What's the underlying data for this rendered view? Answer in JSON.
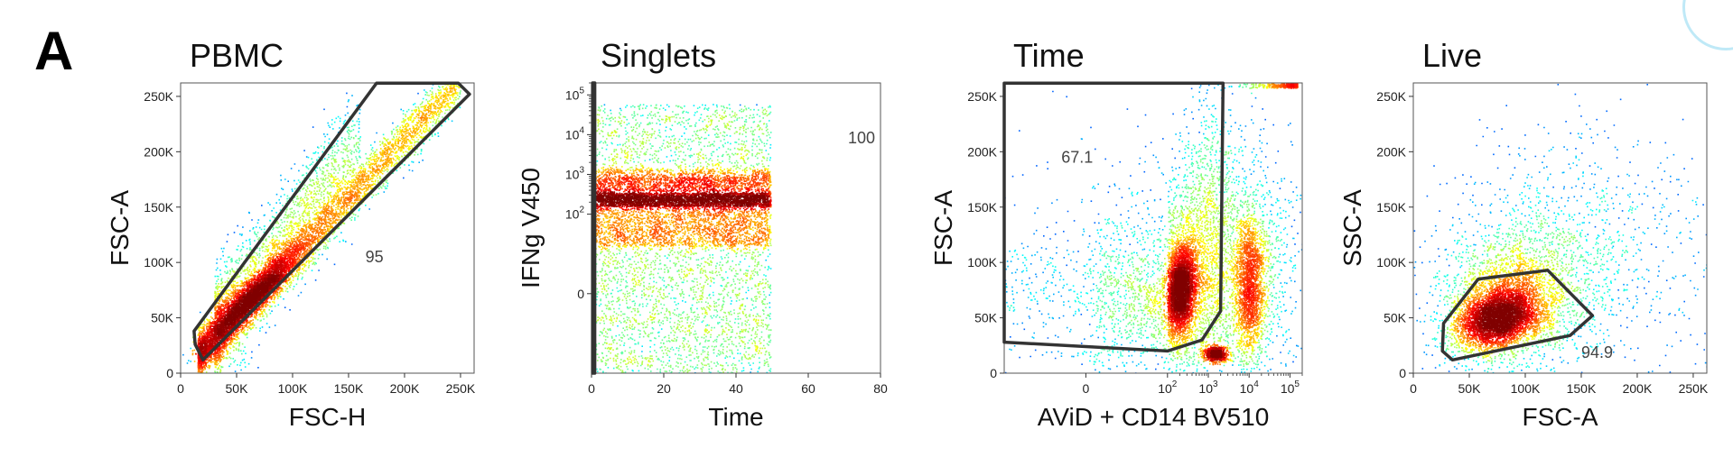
{
  "figure": {
    "panel_label": "A",
    "accent_arc_color": "#bfe9f7"
  },
  "chart_data": [
    {
      "type": "scatter",
      "title": "PBMC",
      "xlabel": "FSC-H",
      "ylabel": "FSC-A",
      "xscale": "linear",
      "yscale": "linear",
      "xlim": [
        0,
        262144
      ],
      "ylim": [
        0,
        262144
      ],
      "x_ticks": [
        {
          "value": 0,
          "label": "0"
        },
        {
          "value": 50000,
          "label": "50K"
        },
        {
          "value": 100000,
          "label": "100K"
        },
        {
          "value": 150000,
          "label": "150K"
        },
        {
          "value": 200000,
          "label": "200K"
        },
        {
          "value": 250000,
          "label": "250K"
        }
      ],
      "y_ticks": [
        {
          "value": 0,
          "label": "0"
        },
        {
          "value": 50000,
          "label": "50K"
        },
        {
          "value": 100000,
          "label": "100K"
        },
        {
          "value": 150000,
          "label": "150K"
        },
        {
          "value": 200000,
          "label": "200K"
        },
        {
          "value": 250000,
          "label": "250K"
        }
      ],
      "gate": {
        "label": "95",
        "label_at": [
          165000,
          100000
        ],
        "polygon": [
          [
            12000,
            38000
          ],
          [
            175000,
            262000
          ],
          [
            248000,
            262000
          ],
          [
            258000,
            252000
          ],
          [
            20000,
            12000
          ],
          [
            13000,
            26000
          ]
        ]
      },
      "populations": [
        {
          "type": "diag",
          "x0": 15000,
          "x1": 250000,
          "slope": 1.06,
          "sd": 11000,
          "n": 5200
        },
        {
          "type": "diag",
          "x0": 30000,
          "x1": 160000,
          "slope": 1.32,
          "sd": 24000,
          "n": 2200
        },
        {
          "type": "gauss",
          "mx": 65000,
          "my": 70000,
          "sx": 20000,
          "sy": 21000,
          "rho": 0.92,
          "n": 2800
        }
      ]
    },
    {
      "type": "scatter",
      "title": "Singlets",
      "xlabel": "Time",
      "ylabel": "IFNg V450",
      "xscale": "linear",
      "yscale": "biexp",
      "xlim": [
        0,
        80
      ],
      "ylim": [
        -100,
        200000
      ],
      "x_ticks": [
        {
          "value": 0,
          "label": "0"
        },
        {
          "value": 20,
          "label": "20"
        },
        {
          "value": 40,
          "label": "40"
        },
        {
          "value": 60,
          "label": "60"
        },
        {
          "value": 80,
          "label": "80"
        }
      ],
      "y_ticks": [
        {
          "value": 0,
          "label": "0"
        },
        {
          "value": 100,
          "label": "10",
          "sup": "2"
        },
        {
          "value": 1000,
          "label": "10",
          "sup": "3"
        },
        {
          "value": 10000,
          "label": "10",
          "sup": "4"
        },
        {
          "value": 100000,
          "label": "10",
          "sup": "5"
        }
      ],
      "gate": {
        "label": "100",
        "label_at": [
          71,
          6000
        ],
        "polygon": [
          [
            0.3,
            -100
          ],
          [
            0.3,
            200000
          ],
          [
            0.9,
            200000
          ],
          [
            0.9,
            -100
          ]
        ]
      },
      "populations": [
        {
          "type": "band",
          "x0": 0,
          "x1": 49.5,
          "ymin": -100,
          "ymax": 60000,
          "n": 4200
        },
        {
          "type": "band",
          "x0": 0,
          "x1": 49.5,
          "ymin": 160,
          "ymax": 350,
          "n": 2600
        },
        {
          "type": "band",
          "x0": 0,
          "x1": 49.5,
          "ymin": 60,
          "ymax": 900,
          "n": 3000
        },
        {
          "type": "band",
          "x0": 0,
          "x1": 49.5,
          "ymin": 400,
          "ymax": 1400,
          "n": 800
        }
      ]
    },
    {
      "type": "scatter",
      "title": "Time",
      "xlabel": "AViD + CD14 BV510",
      "ylabel": "FSC-A",
      "xscale": "biexp",
      "yscale": "linear",
      "xlim": [
        -100,
        200000
      ],
      "ylim": [
        0,
        262144
      ],
      "x_ticks": [
        {
          "value": 0,
          "label": "0"
        },
        {
          "value": 100,
          "label": "10",
          "sup": "2"
        },
        {
          "value": 1000,
          "label": "10",
          "sup": "3"
        },
        {
          "value": 10000,
          "label": "10",
          "sup": "4"
        },
        {
          "value": 100000,
          "label": "10",
          "sup": "5"
        }
      ],
      "y_ticks": [
        {
          "value": 0,
          "label": "0"
        },
        {
          "value": 50000,
          "label": "50K"
        },
        {
          "value": 100000,
          "label": "100K"
        },
        {
          "value": 150000,
          "label": "150K"
        },
        {
          "value": 200000,
          "label": "200K"
        },
        {
          "value": 250000,
          "label": "250K"
        }
      ],
      "gate": {
        "label": "67.1",
        "label_at": [
          -30,
          190000
        ],
        "polygon": [
          [
            -100,
            262000
          ],
          [
            -100,
            28000
          ],
          [
            100,
            20000
          ],
          [
            700,
            30000
          ],
          [
            2000,
            56000
          ],
          [
            2300,
            262000
          ],
          [
            1300,
            262000
          ]
        ]
      },
      "populations": [
        {
          "type": "gauss",
          "mx": 200,
          "my": 75000,
          "sx": 120,
          "sy": 20000,
          "rho": 0.2,
          "n": 3600
        },
        {
          "type": "gauss",
          "mx": 200,
          "my": 80000,
          "sx": 600,
          "sy": 45000,
          "rho": 0.1,
          "n": 2200
        },
        {
          "type": "gauss",
          "mx": 10000,
          "my": 80000,
          "sx": 6000,
          "sy": 32000,
          "rho": 0.0,
          "n": 1900
        },
        {
          "type": "gauss",
          "mx": 6000,
          "my": 90000,
          "sx": 30000,
          "sy": 60000,
          "rho": 0.0,
          "n": 1600
        },
        {
          "type": "gauss",
          "mx": 1500,
          "my": 18000,
          "sx": 700,
          "sy": 3500,
          "rho": 0.0,
          "n": 700
        },
        {
          "type": "gauss",
          "mx": 900,
          "my": 150000,
          "sx": 1500,
          "sy": 60000,
          "rho": 0.0,
          "n": 700
        },
        {
          "type": "band",
          "x0": 1000,
          "x1": 150000,
          "ymin": 258000,
          "ymax": 262000,
          "n": 300
        }
      ]
    },
    {
      "type": "scatter",
      "title": "Live",
      "xlabel": "FSC-A",
      "ylabel": "SSC-A",
      "xscale": "linear",
      "yscale": "linear",
      "xlim": [
        0,
        262144
      ],
      "ylim": [
        0,
        262144
      ],
      "x_ticks": [
        {
          "value": 0,
          "label": "0"
        },
        {
          "value": 50000,
          "label": "50K"
        },
        {
          "value": 100000,
          "label": "100K"
        },
        {
          "value": 150000,
          "label": "150K"
        },
        {
          "value": 200000,
          "label": "200K"
        },
        {
          "value": 250000,
          "label": "250K"
        }
      ],
      "y_ticks": [
        {
          "value": 0,
          "label": "0"
        },
        {
          "value": 50000,
          "label": "50K"
        },
        {
          "value": 100000,
          "label": "100K"
        },
        {
          "value": 150000,
          "label": "150K"
        },
        {
          "value": 200000,
          "label": "200K"
        },
        {
          "value": 250000,
          "label": "250K"
        }
      ],
      "gate": {
        "label": "94.9",
        "label_at": [
          150000,
          14000
        ],
        "polygon": [
          [
            27000,
            45000
          ],
          [
            58000,
            85000
          ],
          [
            120000,
            93000
          ],
          [
            160000,
            52000
          ],
          [
            140000,
            34000
          ],
          [
            35000,
            12000
          ],
          [
            26000,
            20000
          ]
        ]
      },
      "populations": [
        {
          "type": "gauss",
          "mx": 75000,
          "my": 50000,
          "sx": 18000,
          "sy": 13000,
          "rho": 0.3,
          "n": 3800
        },
        {
          "type": "gauss",
          "mx": 85000,
          "my": 65000,
          "sx": 30000,
          "sy": 28000,
          "rho": 0.2,
          "n": 2600
        },
        {
          "type": "gauss",
          "mx": 120000,
          "my": 110000,
          "sx": 55000,
          "sy": 55000,
          "rho": 0.2,
          "n": 1000
        },
        {
          "type": "gauss",
          "mx": 180000,
          "my": 80000,
          "sx": 60000,
          "sy": 60000,
          "rho": 0.0,
          "n": 300
        }
      ]
    }
  ]
}
